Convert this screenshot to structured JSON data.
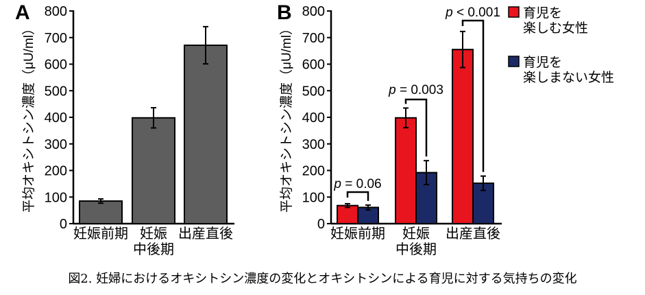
{
  "caption": "図2. 妊婦におけるオキシトシン濃度の変化とオキシトシンによる育児に対する気持ちの変化",
  "colors": {
    "panel_a_bar": "#5e5e5e",
    "group_enjoy": "#e8141e",
    "group_not_enjoy": "#1b2a66"
  },
  "chart_data": [
    {
      "type": "bar",
      "panel_label": "A",
      "ylabel": "平均オキシトシン濃度（μU/ml）",
      "ylim": [
        0,
        800
      ],
      "yticks": [
        0,
        100,
        200,
        300,
        400,
        500,
        600,
        700,
        800
      ],
      "categories": [
        {
          "lines": [
            "妊娠前期"
          ]
        },
        {
          "lines": [
            "妊娠",
            "中後期"
          ]
        },
        {
          "lines": [
            "出産直後"
          ]
        }
      ],
      "values": [
        85,
        398,
        671
      ],
      "errors": [
        8,
        38,
        70
      ],
      "grid": false
    },
    {
      "type": "bar",
      "panel_label": "B",
      "ylabel": "平均オキシトシン濃度（μU/ml）",
      "ylim": [
        0,
        800
      ],
      "yticks": [
        0,
        100,
        200,
        300,
        400,
        500,
        600,
        700,
        800
      ],
      "categories": [
        {
          "lines": [
            "妊娠前期"
          ]
        },
        {
          "lines": [
            "妊娠",
            "中後期"
          ]
        },
        {
          "lines": [
            "出産直後"
          ]
        }
      ],
      "series": [
        {
          "name": "育児を楽しむ女性",
          "legend_lines": [
            "育児を",
            "楽しむ女性"
          ],
          "values": [
            68,
            398,
            655
          ],
          "errors": [
            7,
            37,
            68
          ]
        },
        {
          "name": "育児を楽しまない女性",
          "legend_lines": [
            "育児を",
            "楽しまない女性"
          ],
          "values": [
            61,
            192,
            152
          ],
          "errors": [
            9,
            45,
            27
          ]
        }
      ],
      "annotations": [
        "p = 0.06",
        "p = 0.003",
        "p < 0.001"
      ],
      "legend_position": "top-right",
      "grid": false
    }
  ]
}
